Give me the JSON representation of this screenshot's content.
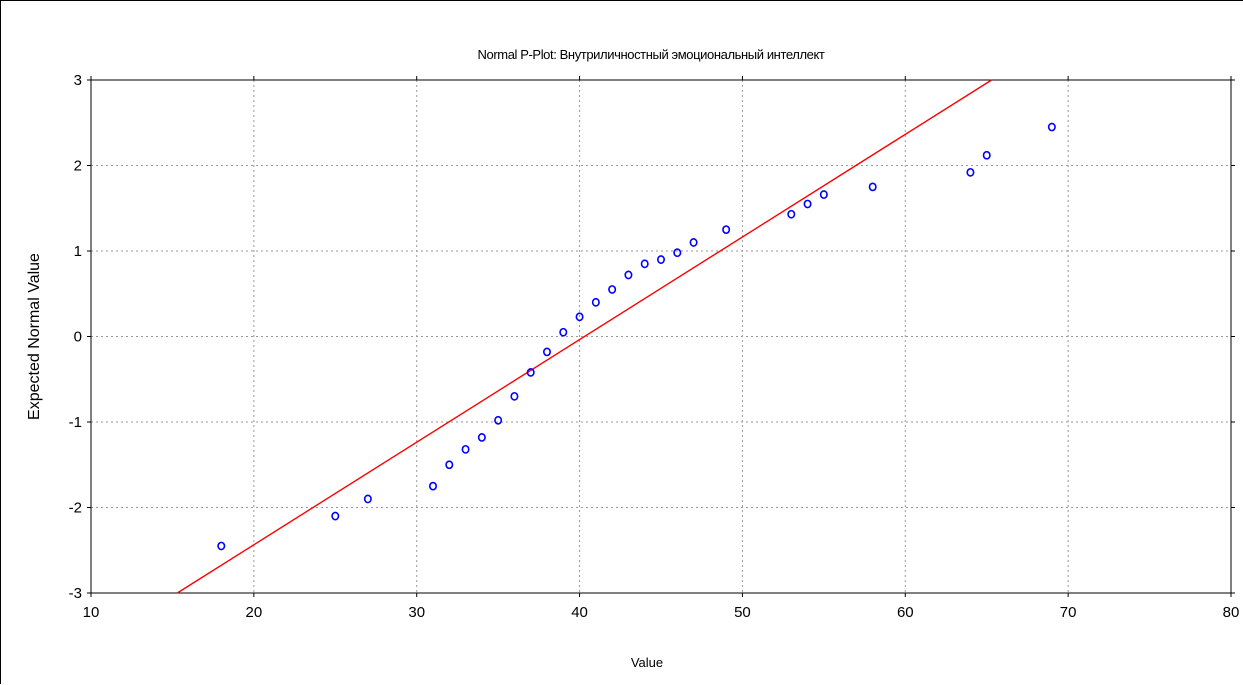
{
  "chart_data": {
    "type": "scatter",
    "title": "Normal P-Plot: Внутриличностный эмоциональный интеллект",
    "xlabel": "Value",
    "ylabel": "Expected Normal Value",
    "xlim": [
      10,
      80
    ],
    "ylim": [
      -3,
      3
    ],
    "x_ticks": [
      10,
      20,
      30,
      40,
      50,
      60,
      70,
      80
    ],
    "y_ticks": [
      -3,
      -2,
      -1,
      0,
      1,
      2,
      3
    ],
    "x_tick_labels": [
      "10",
      "20",
      "30",
      "40",
      "50",
      "60",
      "70",
      "80"
    ],
    "y_tick_labels": [
      "-3",
      "-2",
      "-1",
      "0",
      "1",
      "2",
      "3"
    ],
    "grid": true,
    "marker_color": "#0000ff",
    "line_color": "#ff0000",
    "fit_line": {
      "x": [
        15.3,
        65.3
      ],
      "y": [
        -3,
        3
      ]
    },
    "points": [
      {
        "x": 18,
        "y": -2.45
      },
      {
        "x": 25,
        "y": -2.1
      },
      {
        "x": 27,
        "y": -1.9
      },
      {
        "x": 31,
        "y": -1.75
      },
      {
        "x": 32,
        "y": -1.5
      },
      {
        "x": 33,
        "y": -1.32
      },
      {
        "x": 34,
        "y": -1.18
      },
      {
        "x": 35,
        "y": -0.98
      },
      {
        "x": 36,
        "y": -0.7
      },
      {
        "x": 37,
        "y": -0.42
      },
      {
        "x": 38,
        "y": -0.18
      },
      {
        "x": 39,
        "y": 0.05
      },
      {
        "x": 40,
        "y": 0.23
      },
      {
        "x": 41,
        "y": 0.4
      },
      {
        "x": 42,
        "y": 0.55
      },
      {
        "x": 43,
        "y": 0.72
      },
      {
        "x": 44,
        "y": 0.85
      },
      {
        "x": 45,
        "y": 0.9
      },
      {
        "x": 46,
        "y": 0.98
      },
      {
        "x": 47,
        "y": 1.1
      },
      {
        "x": 49,
        "y": 1.25
      },
      {
        "x": 53,
        "y": 1.43
      },
      {
        "x": 54,
        "y": 1.55
      },
      {
        "x": 55,
        "y": 1.66
      },
      {
        "x": 58,
        "y": 1.75
      },
      {
        "x": 64,
        "y": 1.92
      },
      {
        "x": 65,
        "y": 2.12
      },
      {
        "x": 69,
        "y": 2.45
      }
    ]
  }
}
